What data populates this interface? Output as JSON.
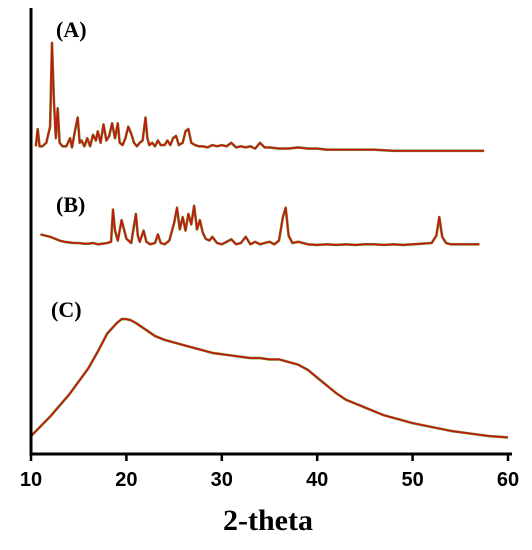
{
  "chart_data": {
    "type": "line",
    "xlabel": "2-theta",
    "ylabel": "",
    "xlim": [
      10,
      60
    ],
    "xticks": [
      10,
      20,
      30,
      40,
      50,
      60
    ],
    "grid": false,
    "legend": "none",
    "colors": {
      "trace": "#c81414",
      "trace_shadow": "#6e8c1e",
      "axis": "#000000"
    },
    "series": [
      {
        "label": "(A)",
        "ylim": [
          0,
          100
        ],
        "x": [
          10.5,
          10.7,
          10.9,
          11.2,
          11.6,
          12.0,
          12.2,
          12.4,
          12.6,
          12.8,
          13.0,
          13.3,
          13.7,
          14.1,
          14.3,
          14.6,
          14.9,
          15.1,
          15.3,
          15.6,
          15.9,
          16.2,
          16.5,
          16.8,
          17.0,
          17.3,
          17.6,
          17.9,
          18.2,
          18.5,
          18.8,
          19.1,
          19.3,
          19.6,
          19.9,
          20.2,
          20.5,
          20.8,
          21.1,
          21.4,
          21.7,
          22.0,
          22.2,
          22.4,
          22.7,
          23.0,
          23.3,
          23.6,
          24.0,
          24.3,
          24.6,
          24.9,
          25.2,
          25.5,
          25.9,
          26.2,
          26.5,
          26.8,
          27.2,
          27.6,
          28.0,
          28.5,
          29.0,
          29.5,
          30.0,
          30.5,
          31.0,
          31.5,
          32.0,
          32.5,
          33.0,
          33.5,
          34.0,
          34.5,
          35.0,
          36.0,
          37.0,
          38.0,
          39.0,
          40.0,
          41.0,
          42.0,
          44.0,
          46.0,
          48.0,
          50.0,
          52.0,
          54.0,
          56.0,
          57.5
        ],
        "y": [
          5,
          20,
          5,
          5,
          8,
          22,
          95,
          45,
          12,
          38,
          8,
          5,
          5,
          12,
          4,
          18,
          30,
          8,
          10,
          5,
          12,
          5,
          15,
          10,
          18,
          8,
          24,
          10,
          14,
          25,
          12,
          25,
          8,
          6,
          12,
          22,
          16,
          8,
          5,
          8,
          10,
          30,
          12,
          6,
          8,
          5,
          10,
          6,
          6,
          10,
          6,
          12,
          14,
          6,
          8,
          18,
          20,
          8,
          6,
          5,
          5,
          4,
          6,
          5,
          6,
          5,
          8,
          4,
          5,
          4,
          5,
          3,
          8,
          4,
          4,
          3,
          3,
          4,
          3,
          3,
          2,
          2,
          2,
          2,
          1,
          1,
          1,
          1,
          1,
          1
        ]
      },
      {
        "label": "(B)",
        "ylim": [
          0,
          100
        ],
        "x": [
          11.0,
          11.5,
          12.0,
          12.5,
          13.0,
          13.5,
          14.0,
          14.5,
          15.0,
          15.5,
          16.0,
          16.5,
          17.0,
          17.5,
          18.0,
          18.4,
          18.6,
          18.8,
          19.1,
          19.5,
          20.0,
          20.5,
          21.0,
          21.2,
          21.4,
          21.8,
          22.1,
          22.5,
          23.0,
          23.3,
          23.6,
          24.0,
          24.5,
          25.0,
          25.3,
          25.6,
          25.9,
          26.2,
          26.5,
          26.8,
          27.1,
          27.4,
          27.7,
          28.0,
          28.3,
          28.7,
          29.0,
          29.5,
          30.0,
          30.5,
          31.0,
          31.5,
          32.0,
          32.5,
          33.0,
          33.5,
          34.0,
          34.5,
          35.0,
          35.5,
          36.0,
          36.4,
          36.7,
          37.0,
          37.4,
          38.0,
          39.0,
          40.0,
          41.0,
          42.0,
          43.0,
          44.0,
          45.0,
          46.0,
          47.0,
          48.0,
          49.0,
          50.0,
          51.0,
          52.0,
          52.5,
          52.8,
          53.1,
          53.5,
          54.0,
          55.0,
          56.0,
          57.0
        ],
        "y": [
          22,
          20,
          18,
          15,
          12,
          10,
          9,
          8,
          8,
          7,
          7,
          8,
          6,
          7,
          8,
          10,
          62,
          28,
          12,
          45,
          15,
          8,
          55,
          20,
          10,
          28,
          10,
          6,
          8,
          22,
          8,
          6,
          12,
          40,
          65,
          30,
          50,
          28,
          55,
          38,
          68,
          30,
          45,
          25,
          15,
          12,
          18,
          8,
          6,
          10,
          14,
          6,
          8,
          18,
          6,
          10,
          6,
          8,
          10,
          6,
          12,
          50,
          65,
          20,
          8,
          10,
          6,
          5,
          6,
          5,
          6,
          5,
          6,
          6,
          5,
          6,
          5,
          6,
          7,
          8,
          20,
          50,
          18,
          8,
          6,
          6,
          6,
          6
        ]
      },
      {
        "label": "(C)",
        "ylim": [
          0,
          100
        ],
        "x": [
          10,
          12,
          14,
          16,
          17,
          18,
          19,
          19.5,
          20,
          20.5,
          21,
          22,
          23,
          24,
          25,
          26,
          27,
          28,
          29,
          30,
          31,
          32,
          33,
          34,
          35,
          36,
          37,
          38,
          39,
          40,
          41,
          42,
          43,
          44,
          45,
          46,
          47,
          48,
          50,
          52,
          54,
          56,
          58,
          60
        ],
        "y": [
          3,
          18,
          35,
          55,
          68,
          82,
          90,
          93,
          93,
          92,
          90,
          85,
          80,
          77,
          75,
          73,
          71,
          69,
          67,
          66,
          65,
          64,
          63,
          63,
          62,
          62,
          60,
          58,
          54,
          48,
          42,
          36,
          31,
          28,
          25,
          22,
          19,
          17,
          13,
          10,
          7,
          5,
          3,
          2
        ]
      }
    ]
  }
}
